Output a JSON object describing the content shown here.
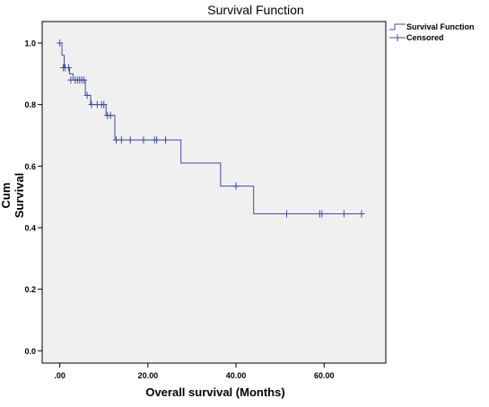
{
  "chart_data": {
    "type": "line",
    "title": "Survival Function",
    "xlabel": "Overall survival (Months)",
    "ylabel": "Cum Survival",
    "xlim": [
      -4,
      74
    ],
    "ylim": [
      -0.04,
      1.07
    ],
    "x_ticks": [
      0,
      20,
      40,
      60
    ],
    "x_tick_labels": [
      ".00",
      "20.00",
      "40.00",
      "60.00"
    ],
    "y_ticks": [
      0.0,
      0.2,
      0.4,
      0.6,
      0.8,
      1.0
    ],
    "y_tick_labels": [
      "0.0",
      "0.2",
      "0.4",
      "0.6",
      "0.8",
      "1.0"
    ],
    "legend_position": "top-right outside",
    "colors": {
      "series": "#3e4ea0",
      "plot_bg": "#f0f0f0",
      "frame": "#000000"
    },
    "series": [
      {
        "name": "Survival Function",
        "x": [
          0,
          0.5,
          1.0,
          2.2,
          3.0,
          5.8,
          7.0,
          10.5,
          12.5,
          27.5,
          36.5,
          44.0,
          68.5
        ],
        "y": [
          1.0,
          0.96,
          0.92,
          0.9,
          0.88,
          0.83,
          0.8,
          0.765,
          0.685,
          0.61,
          0.535,
          0.445,
          0.445
        ]
      },
      {
        "name": "Censored",
        "x": [
          0,
          0.8,
          1.2,
          2.0,
          2.5,
          3.5,
          4.0,
          4.5,
          5.0,
          5.5,
          6.2,
          7.2,
          8.5,
          9.5,
          10.0,
          10.8,
          11.5,
          12.8,
          14.0,
          16.0,
          19.0,
          21.5,
          22.0,
          24.0,
          40.0,
          51.5,
          59.0,
          59.5,
          64.5,
          68.5
        ],
        "y": [
          1.0,
          0.92,
          0.92,
          0.92,
          0.88,
          0.88,
          0.88,
          0.88,
          0.88,
          0.88,
          0.83,
          0.8,
          0.8,
          0.8,
          0.8,
          0.765,
          0.765,
          0.685,
          0.685,
          0.685,
          0.685,
          0.685,
          0.685,
          0.685,
          0.535,
          0.445,
          0.445,
          0.445,
          0.445,
          0.445
        ]
      }
    ]
  }
}
